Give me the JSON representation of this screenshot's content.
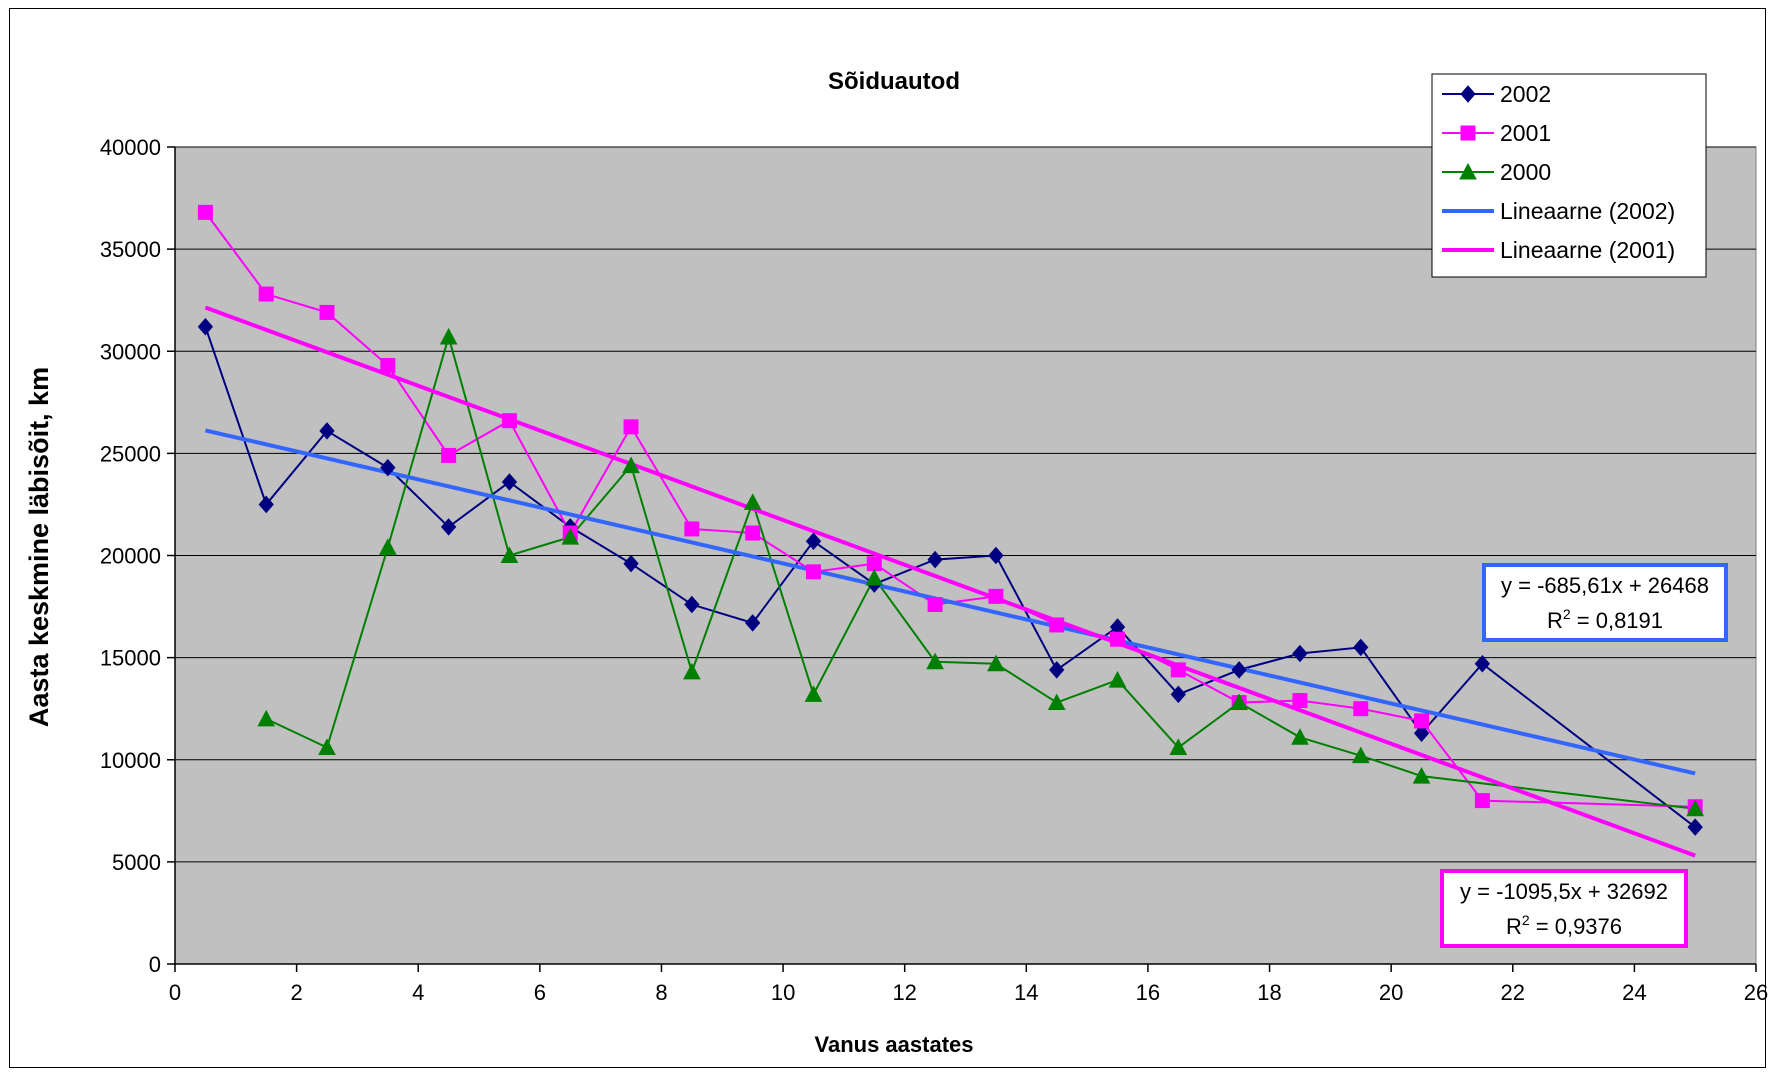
{
  "chart_data": {
    "type": "line",
    "title": "Sõiduautod",
    "xlabel": "Vanus aastates",
    "ylabel": "Aasta keskmine läbisõit, km",
    "xlim": [
      0,
      26
    ],
    "ylim": [
      0,
      40000
    ],
    "x_ticks": [
      0,
      2,
      4,
      6,
      8,
      10,
      12,
      14,
      16,
      18,
      20,
      22,
      24,
      26
    ],
    "y_ticks": [
      0,
      5000,
      10000,
      15000,
      20000,
      25000,
      30000,
      35000,
      40000
    ],
    "grid": "horizontal",
    "plot_background": "#c0c0c0",
    "legend_position": "top-right",
    "series": [
      {
        "name": "2002",
        "color": "#000080",
        "marker": "diamond",
        "x": [
          0.5,
          1.5,
          2.5,
          3.5,
          4.5,
          5.5,
          6.5,
          7.5,
          8.5,
          9.5,
          10.5,
          11.5,
          12.5,
          13.5,
          14.5,
          15.5,
          16.5,
          17.5,
          18.5,
          19.5,
          20.5,
          21.5,
          25
        ],
        "y": [
          31200,
          22500,
          26100,
          24300,
          21400,
          23600,
          21400,
          19600,
          17600,
          16700,
          20700,
          18600,
          19800,
          20000,
          14400,
          16500,
          13200,
          14400,
          15200,
          15500,
          11300,
          14700,
          6700
        ]
      },
      {
        "name": "2001",
        "color": "#ff00ff",
        "marker": "square",
        "x": [
          0.5,
          1.5,
          2.5,
          3.5,
          4.5,
          5.5,
          6.5,
          7.5,
          8.5,
          9.5,
          10.5,
          11.5,
          12.5,
          13.5,
          14.5,
          15.5,
          16.5,
          17.5,
          18.5,
          19.5,
          20.5,
          21.5,
          25
        ],
        "y": [
          36800,
          32800,
          31900,
          29300,
          24900,
          26600,
          21100,
          26300,
          21300,
          21100,
          19200,
          19600,
          17600,
          18000,
          16600,
          15900,
          14400,
          12800,
          12900,
          12500,
          11900,
          8000,
          7700
        ]
      },
      {
        "name": "2000",
        "color": "#008000",
        "marker": "triangle",
        "x": [
          1.5,
          2.5,
          3.5,
          4.5,
          5.5,
          6.5,
          7.5,
          8.5,
          9.5,
          10.5,
          11.5,
          12.5,
          13.5,
          14.5,
          15.5,
          16.5,
          17.5,
          18.5,
          19.5,
          20.5,
          25
        ],
        "y": [
          12000,
          10600,
          20400,
          30700,
          20000,
          20900,
          24400,
          14300,
          22600,
          13200,
          18900,
          14800,
          14700,
          12800,
          13900,
          10600,
          12800,
          11100,
          10200,
          9200,
          7600
        ]
      }
    ],
    "trendlines": [
      {
        "name": "Lineaarne (2002)",
        "color": "#3366ff",
        "slope": -685.61,
        "intercept": 26468,
        "x_range": [
          0.5,
          25
        ],
        "equation": "y = -685,61x + 26468",
        "r2_label": "R",
        "r2_sup": "2",
        "r2_value": " = 0,8191"
      },
      {
        "name": "Lineaarne (2001)",
        "color": "#ff00ff",
        "slope": -1095.5,
        "intercept": 32692,
        "x_range": [
          0.5,
          25
        ],
        "equation": "y = -1095,5x + 32692",
        "r2_label": "R",
        "r2_sup": "2",
        "r2_value": " = 0,9376"
      }
    ]
  }
}
